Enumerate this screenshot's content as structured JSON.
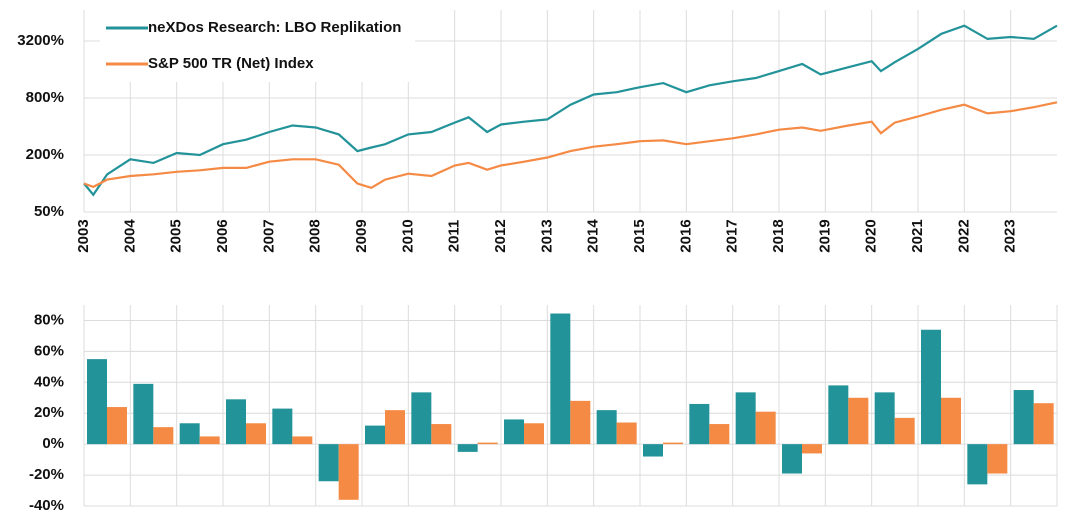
{
  "chart_data": [
    {
      "type": "line",
      "ylog": true,
      "grid": true,
      "legend": "upper left",
      "xlim": [
        2003,
        2024
      ],
      "xticks": [
        2003,
        2004,
        2005,
        2006,
        2007,
        2008,
        2009,
        2010,
        2011,
        2012,
        2013,
        2014,
        2015,
        2016,
        2017,
        2018,
        2019,
        2020,
        2021,
        2022,
        2023
      ],
      "ylim": [
        50,
        6800
      ],
      "yticks": [
        {
          "value": 50,
          "label": "50%"
        },
        {
          "value": 200,
          "label": "200%"
        },
        {
          "value": 800,
          "label": "800%"
        },
        {
          "value": 3200,
          "label": "3200%"
        }
      ],
      "x": [
        2003,
        2003.2,
        2003.5,
        2004,
        2004.5,
        2005,
        2005.5,
        2006,
        2006.5,
        2007,
        2007.5,
        2008,
        2008.5,
        2008.9,
        2009.2,
        2009.5,
        2010,
        2010.5,
        2011,
        2011.3,
        2011.7,
        2012,
        2012.5,
        2013,
        2013.5,
        2014,
        2014.5,
        2015,
        2015.5,
        2016,
        2016.5,
        2017,
        2017.5,
        2018,
        2018.5,
        2018.9,
        2019.5,
        2020,
        2020.2,
        2020.5,
        2021,
        2021.5,
        2022,
        2022.5,
        2023,
        2023.5,
        2024
      ],
      "series": [
        {
          "name": "neXDos Research: LBO Replikation",
          "color": "#23939a",
          "values": [
            100,
            76,
            125,
            180,
            165,
            210,
            200,
            260,
            290,
            350,
            410,
            390,
            330,
            220,
            240,
            260,
            330,
            350,
            440,
            500,
            350,
            420,
            450,
            475,
            680,
            870,
            920,
            1040,
            1150,
            920,
            1090,
            1200,
            1300,
            1540,
            1830,
            1420,
            1690,
            1960,
            1540,
            1910,
            2640,
            3800,
            4640,
            3370,
            3530,
            3370,
            4640
          ]
        },
        {
          "name": "S&P 500 TR (Net) Index",
          "color": "#f58a45",
          "values": [
            100,
            92,
            110,
            120,
            125,
            133,
            138,
            146,
            146,
            170,
            180,
            180,
            158,
            100,
            90,
            110,
            127,
            120,
            155,
            165,
            140,
            155,
            170,
            188,
            220,
            245,
            260,
            280,
            285,
            260,
            280,
            300,
            330,
            370,
            390,
            360,
            410,
            450,
            340,
            440,
            510,
            600,
            680,
            550,
            580,
            640,
            720
          ]
        }
      ]
    },
    {
      "type": "bar",
      "grid": true,
      "ylim": [
        -40,
        90
      ],
      "yticks": [
        {
          "value": -40,
          "label": "-40%"
        },
        {
          "value": -20,
          "label": "-20%"
        },
        {
          "value": 0,
          "label": "0%"
        },
        {
          "value": 20,
          "label": "20%"
        },
        {
          "value": 40,
          "label": "40%"
        },
        {
          "value": 60,
          "label": "60%"
        },
        {
          "value": 80,
          "label": "80%"
        }
      ],
      "series": [
        {
          "color": "#23939a",
          "values": [
            55,
            39,
            13.5,
            29,
            23,
            -24,
            12,
            33.5,
            -5,
            16,
            84.5,
            22,
            -8,
            26,
            33.5,
            -19,
            38,
            33.5,
            74,
            -26,
            35
          ]
        },
        {
          "color": "#f58a45",
          "values": [
            24,
            11,
            5,
            13.5,
            5,
            -36,
            22,
            13,
            1,
            13.5,
            28,
            14,
            1,
            13,
            21,
            -6,
            30,
            17,
            30,
            -19,
            26.5
          ]
        }
      ]
    }
  ]
}
